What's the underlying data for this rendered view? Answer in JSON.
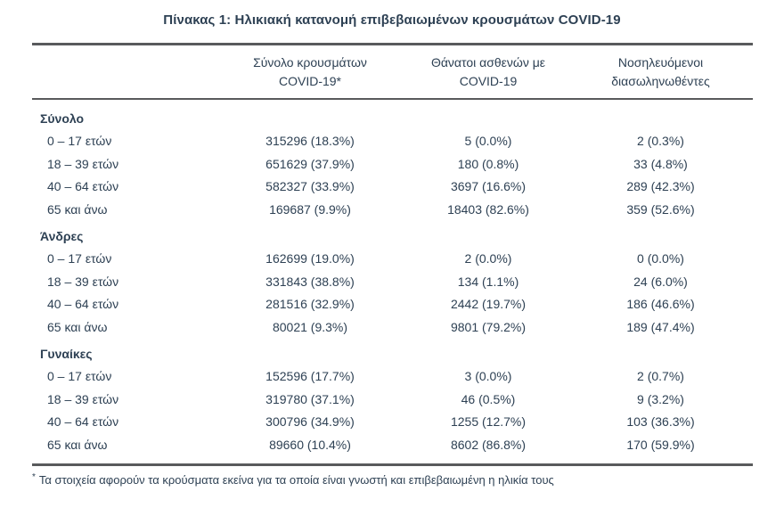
{
  "title": "Πίνακας 1: Ηλικιακή κατανομή επιβεβαιωμένων κρουσμάτων COVID-19",
  "table": {
    "headers": {
      "col1": "",
      "col2_line1": "Σύνολο κρουσμάτων",
      "col2_line2": "COVID-19*",
      "col3_line1": "Θάνατοι ασθενών με",
      "col3_line2": "COVID-19",
      "col4_line1": "Νοσηλευόμενοι",
      "col4_line2": "διασωληνωθέντες"
    },
    "groups": [
      {
        "label": "Σύνολο",
        "rows": [
          {
            "age": "0 – 17 ετών",
            "cases": "315296 (18.3%)",
            "deaths": "5 (0.0%)",
            "intubated": "2 (0.3%)"
          },
          {
            "age": "18 – 39 ετών",
            "cases": "651629 (37.9%)",
            "deaths": "180 (0.8%)",
            "intubated": "33 (4.8%)"
          },
          {
            "age": "40 – 64 ετών",
            "cases": "582327 (33.9%)",
            "deaths": "3697 (16.6%)",
            "intubated": "289 (42.3%)"
          },
          {
            "age": "65 και άνω",
            "cases": "169687 (9.9%)",
            "deaths": "18403 (82.6%)",
            "intubated": "359 (52.6%)"
          }
        ]
      },
      {
        "label": "Άνδρες",
        "rows": [
          {
            "age": "0 – 17 ετών",
            "cases": "162699 (19.0%)",
            "deaths": "2 (0.0%)",
            "intubated": "0 (0.0%)"
          },
          {
            "age": "18 – 39 ετών",
            "cases": "331843 (38.8%)",
            "deaths": "134 (1.1%)",
            "intubated": "24 (6.0%)"
          },
          {
            "age": "40 – 64 ετών",
            "cases": "281516 (32.9%)",
            "deaths": "2442 (19.7%)",
            "intubated": "186 (46.6%)"
          },
          {
            "age": "65 και άνω",
            "cases": "80021 (9.3%)",
            "deaths": "9801 (79.2%)",
            "intubated": "189 (47.4%)"
          }
        ]
      },
      {
        "label": "Γυναίκες",
        "rows": [
          {
            "age": "0 – 17 ετών",
            "cases": "152596 (17.7%)",
            "deaths": "3 (0.0%)",
            "intubated": "2 (0.7%)"
          },
          {
            "age": "18 – 39 ετών",
            "cases": "319780 (37.1%)",
            "deaths": "46 (0.5%)",
            "intubated": "9 (3.2%)"
          },
          {
            "age": "40 – 64 ετών",
            "cases": "300796 (34.9%)",
            "deaths": "1255 (12.7%)",
            "intubated": "103 (36.3%)"
          },
          {
            "age": "65 και άνω",
            "cases": "89660 (10.4%)",
            "deaths": "8602 (86.8%)",
            "intubated": "170 (59.9%)"
          }
        ]
      }
    ]
  },
  "footnote": {
    "marker": "*",
    "text": "Τα στοιχεία αφορούν τα κρούσματα εκείνα για τα οποία είναι γνωστή και επιβεβαιωμένη η ηλικία τους"
  },
  "colors": {
    "text": "#2e4154",
    "rule": "#595a5c",
    "background": "#ffffff"
  }
}
